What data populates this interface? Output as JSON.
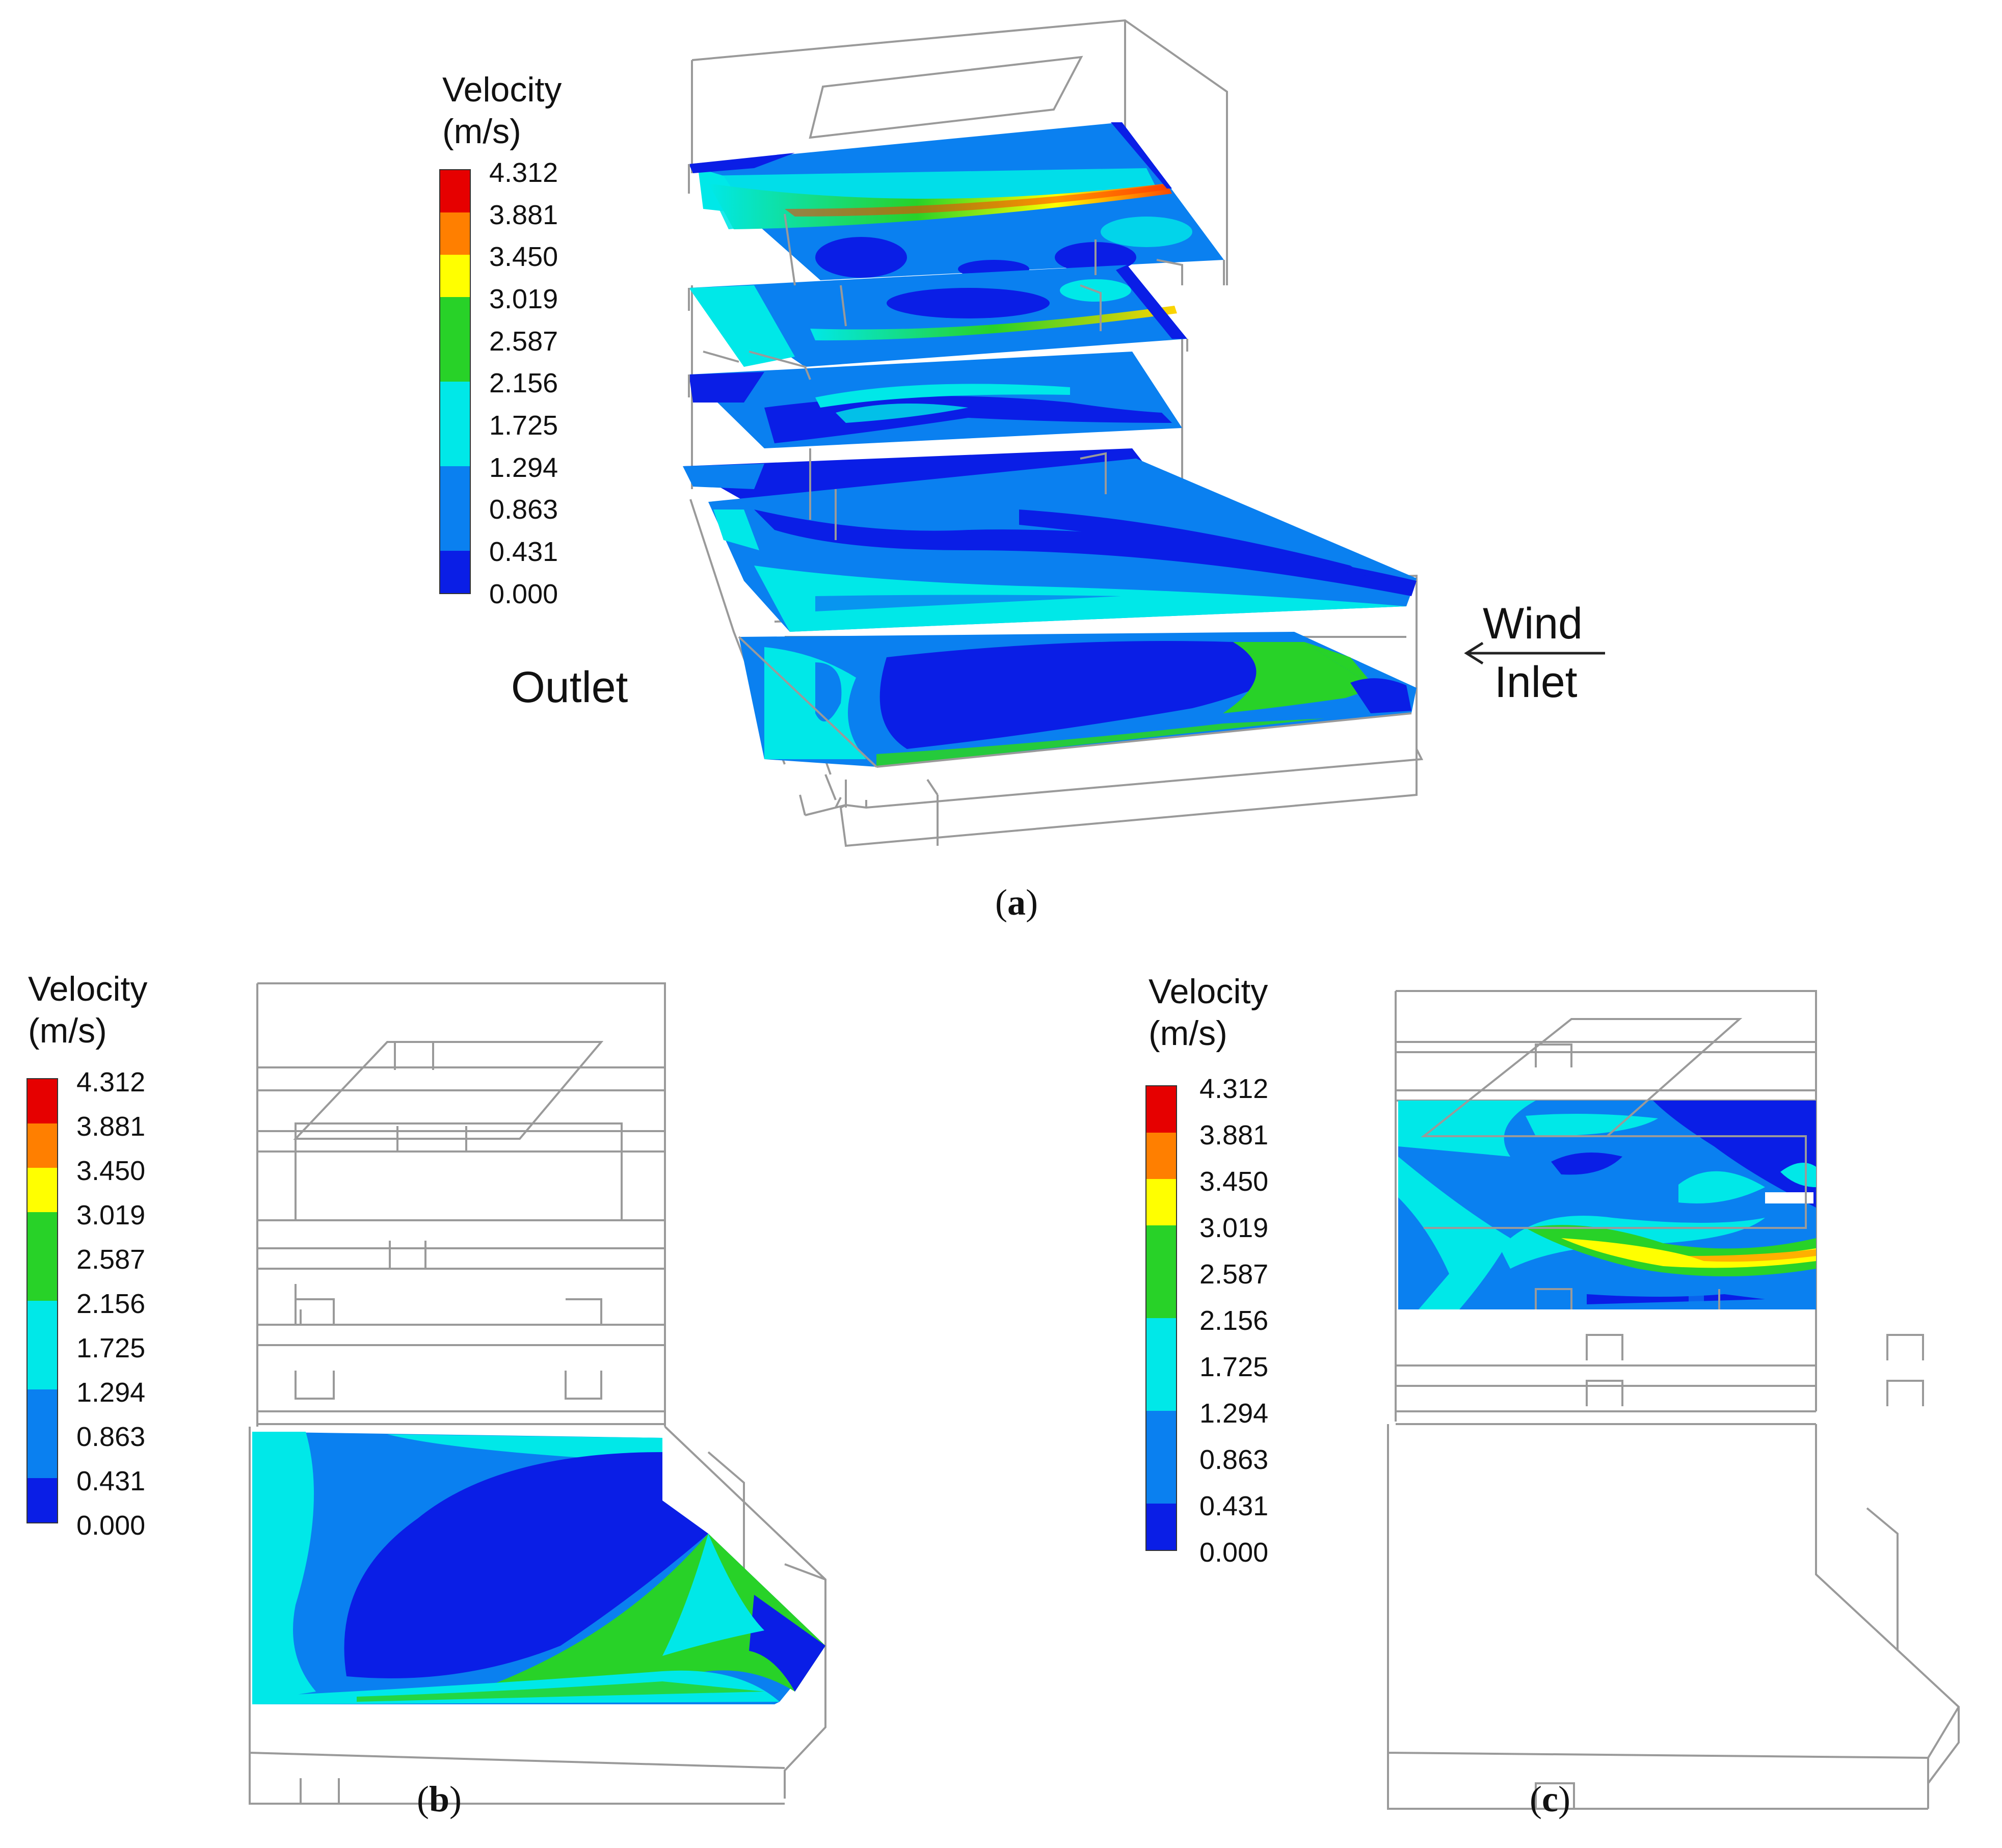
{
  "legend": {
    "title_line1": "Velocity",
    "title_line2": "(m/s)",
    "ticks": [
      "4.312",
      "3.881",
      "3.450",
      "3.019",
      "2.587",
      "2.156",
      "1.725",
      "1.294",
      "0.863",
      "0.431",
      "0.000"
    ],
    "colors": [
      "#e60000",
      "#ff7f00",
      "#ffff00",
      "#28d228",
      "#00e8e8",
      "#0a80f0",
      "#0a1ee6"
    ]
  },
  "panel_a": {
    "caption_open": "(",
    "caption_letter": "a",
    "caption_close": ")",
    "outlet_label": "Outlet",
    "wind_label": "Wind",
    "inlet_label": "Inlet"
  },
  "panel_b": {
    "caption_open": "(",
    "caption_letter": "b",
    "caption_close": ")"
  },
  "panel_c": {
    "caption_open": "(",
    "caption_letter": "c",
    "caption_close": ")"
  }
}
